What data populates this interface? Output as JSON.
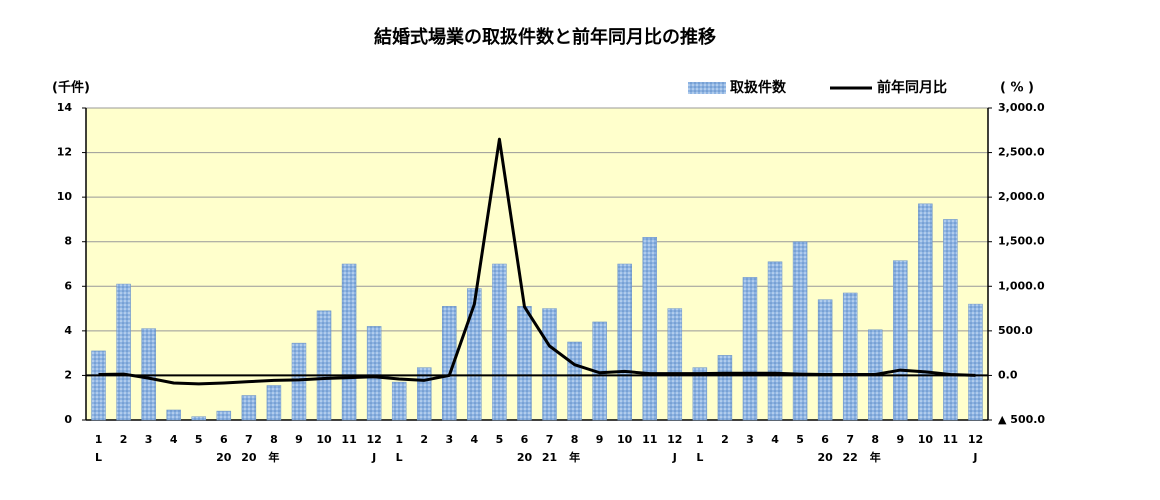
{
  "chart_data": {
    "type": "bar_line",
    "title": "結婚式場業の取扱件数と前年同月比の推移",
    "y_label": "(千件)",
    "y2_label": "( % )",
    "categories": [
      "1",
      "2",
      "3",
      "4",
      "5",
      "6",
      "7",
      "8",
      "9",
      "10",
      "11",
      "12",
      "1",
      "2",
      "3",
      "4",
      "5",
      "6",
      "7",
      "8",
      "9",
      "10",
      "11",
      "12",
      "1",
      "2",
      "3",
      "4",
      "5",
      "6",
      "7",
      "8",
      "9",
      "10",
      "11",
      "12"
    ],
    "x_sublabels": [
      "L",
      null,
      null,
      null,
      null,
      "20",
      "20",
      "年",
      null,
      null,
      null,
      "J",
      "L",
      null,
      null,
      null,
      null,
      "20",
      "21",
      "年",
      null,
      null,
      null,
      "J",
      "L",
      null,
      null,
      null,
      null,
      "20",
      "22",
      "年",
      null,
      null,
      null,
      "J"
    ],
    "series": [
      {
        "name": "取扱件数",
        "color": "#8db3e2",
        "values": [
          3.1,
          6.1,
          4.1,
          0.45,
          0.15,
          0.4,
          1.1,
          1.55,
          3.45,
          4.9,
          7.0,
          4.2,
          1.7,
          2.35,
          5.1,
          5.9,
          7.0,
          5.1,
          5.0,
          3.5,
          4.4,
          7.0,
          8.2,
          5.0,
          2.35,
          2.9,
          6.4,
          7.1,
          8.0,
          5.4,
          5.7,
          4.05,
          7.15,
          9.7,
          9.0,
          5.2
        ]
      },
      {
        "name": "前年同月比",
        "color": "#000000",
        "axis": "y2",
        "values": [
          10,
          15,
          -30,
          -85,
          -95,
          -85,
          -70,
          -55,
          -50,
          -35,
          -25,
          -15,
          -40,
          -55,
          0,
          800,
          2650,
          770,
          330,
          120,
          30,
          45,
          20,
          20,
          20,
          25,
          25,
          25,
          15,
          10,
          10,
          10,
          60,
          40,
          10,
          0
        ]
      }
    ],
    "ylim": [
      0,
      14
    ],
    "yticks": [
      0,
      2,
      4,
      6,
      8,
      10,
      12,
      14
    ],
    "y2lim": [
      -500,
      3000
    ],
    "y2ticks": [
      {
        "value": -500,
        "label": "▲ 500.0"
      },
      {
        "value": 0,
        "label": "0.0"
      },
      {
        "value": 500,
        "label": "500.0"
      },
      {
        "value": 1000,
        "label": "1,000.0"
      },
      {
        "value": 1500,
        "label": "1,500.0"
      },
      {
        "value": 2000,
        "label": "2,000.0"
      },
      {
        "value": 2500,
        "label": "2,500.0"
      },
      {
        "value": 3000,
        "label": "3,000.0"
      }
    ],
    "grid": true,
    "plot_background": "#ffffcc"
  }
}
